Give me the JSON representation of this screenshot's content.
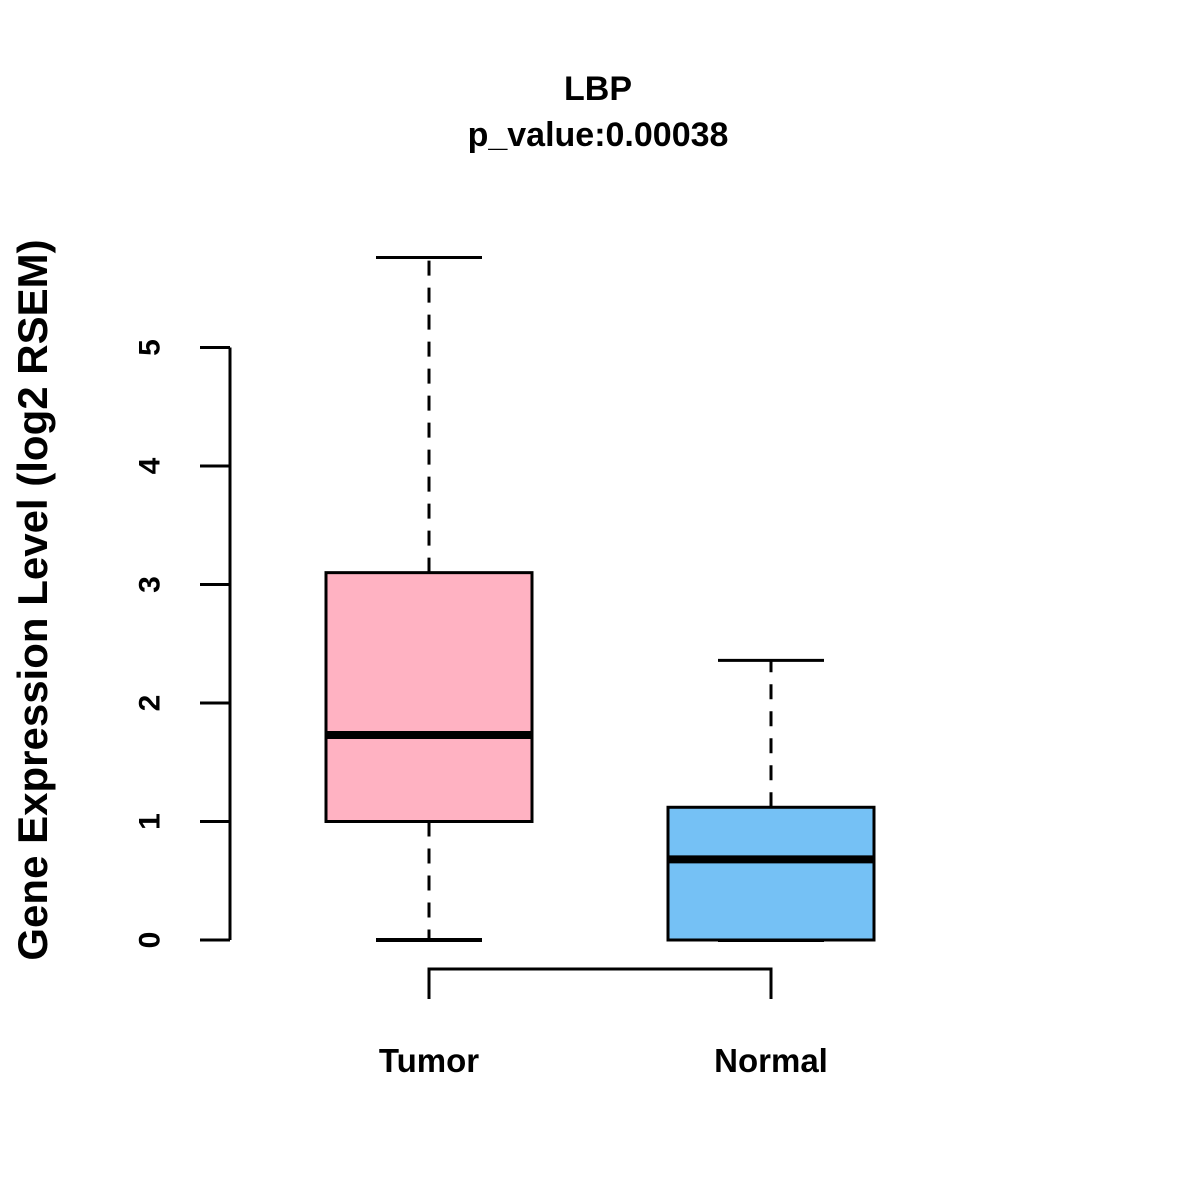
{
  "figure": {
    "title": "LBP",
    "subtitle": "p_value:0.00038",
    "ylabel": "Gene Expression Level (log2 RSEM)"
  },
  "chart_data": {
    "type": "boxplot",
    "title": "LBP",
    "subtitle": "p_value:0.00038",
    "ylabel": "Gene Expression Level (log2 RSEM)",
    "xlabel": "",
    "categories": [
      "Tumor",
      "Normal"
    ],
    "y_ticks": [
      0,
      1,
      2,
      3,
      4,
      5
    ],
    "ylim": [
      0,
      5.9
    ],
    "grid": false,
    "legend": "none",
    "series": [
      {
        "name": "Tumor",
        "fill": "#ffb2c2",
        "whisker_low": 0,
        "q1": 1.0,
        "median": 1.73,
        "q3": 3.1,
        "whisker_high": 5.76
      },
      {
        "name": "Normal",
        "fill": "#75c1f5",
        "whisker_low": 0,
        "q1": 0.0,
        "median": 0.68,
        "q3": 1.12,
        "whisker_high": 2.36
      }
    ],
    "annotations": {
      "comparison_bracket_connects": [
        "Tumor",
        "Normal"
      ]
    },
    "colors": {
      "stroke": "#000000",
      "background": "#ffffff",
      "tumor_fill": "#ffb2c2",
      "normal_fill": "#75c1f5"
    }
  }
}
